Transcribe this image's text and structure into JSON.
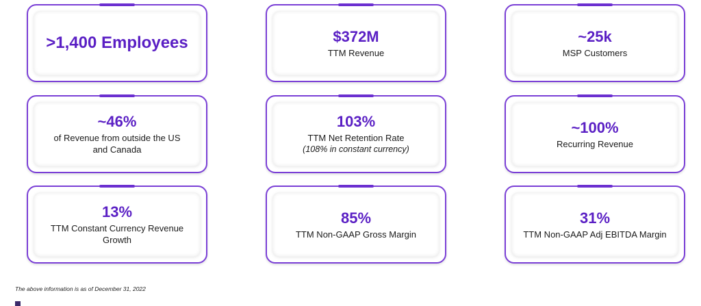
{
  "cards": [
    {
      "metric": ">1,400 Employees",
      "label": "",
      "sub": ""
    },
    {
      "metric": "$372M",
      "label": "TTM Revenue",
      "sub": ""
    },
    {
      "metric": "~25k",
      "label": "MSP Customers",
      "sub": ""
    },
    {
      "metric": "~46%",
      "label": "of Revenue from outside the US and Canada",
      "sub": ""
    },
    {
      "metric": "103%",
      "label": "TTM Net Retention Rate",
      "sub": "(108% in constant currency)"
    },
    {
      "metric": "~100%",
      "label": "Recurring Revenue",
      "sub": ""
    },
    {
      "metric": "13%",
      "label": "TTM Constant Currency Revenue Growth",
      "sub": ""
    },
    {
      "metric": "85%",
      "label": "TTM Non-GAAP Gross Margin",
      "sub": ""
    },
    {
      "metric": "31%",
      "label": "TTM Non-GAAP Adj EBITDA Margin",
      "sub": ""
    }
  ],
  "footnote": "The above information is as of December 31, 2022",
  "colors": {
    "accent": "#5a1fc4",
    "border": "#7a3fd6"
  }
}
